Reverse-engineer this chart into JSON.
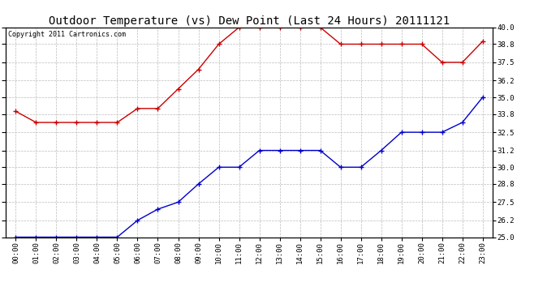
{
  "title": "Outdoor Temperature (vs) Dew Point (Last 24 Hours) 20111121",
  "copyright": "Copyright 2011 Cartronics.com",
  "hours": [
    "00:00",
    "01:00",
    "02:00",
    "03:00",
    "04:00",
    "05:00",
    "06:00",
    "07:00",
    "08:00",
    "09:00",
    "10:00",
    "11:00",
    "12:00",
    "13:00",
    "14:00",
    "15:00",
    "16:00",
    "17:00",
    "18:00",
    "19:00",
    "20:00",
    "21:00",
    "22:00",
    "23:00"
  ],
  "temp": [
    34.0,
    33.2,
    33.2,
    33.2,
    33.2,
    33.2,
    34.2,
    34.2,
    35.6,
    37.0,
    38.8,
    40.0,
    40.0,
    40.0,
    40.0,
    40.0,
    38.8,
    38.8,
    38.8,
    38.8,
    38.8,
    37.5,
    37.5,
    39.0
  ],
  "dew": [
    25.0,
    25.0,
    25.0,
    25.0,
    25.0,
    25.0,
    26.2,
    27.0,
    27.5,
    28.8,
    30.0,
    30.0,
    31.2,
    31.2,
    31.2,
    31.2,
    30.0,
    30.0,
    31.2,
    32.5,
    32.5,
    32.5,
    33.2,
    35.0
  ],
  "ylim": [
    25.0,
    40.0
  ],
  "yticks": [
    25.0,
    26.2,
    27.5,
    28.8,
    30.0,
    31.2,
    32.5,
    33.8,
    35.0,
    36.2,
    37.5,
    38.8,
    40.0
  ],
  "temp_color": "#cc0000",
  "dew_color": "#0000cc",
  "bg_color": "#ffffff",
  "grid_color": "#bbbbbb",
  "title_fontsize": 10,
  "tick_fontsize": 6.5,
  "copyright_fontsize": 6
}
